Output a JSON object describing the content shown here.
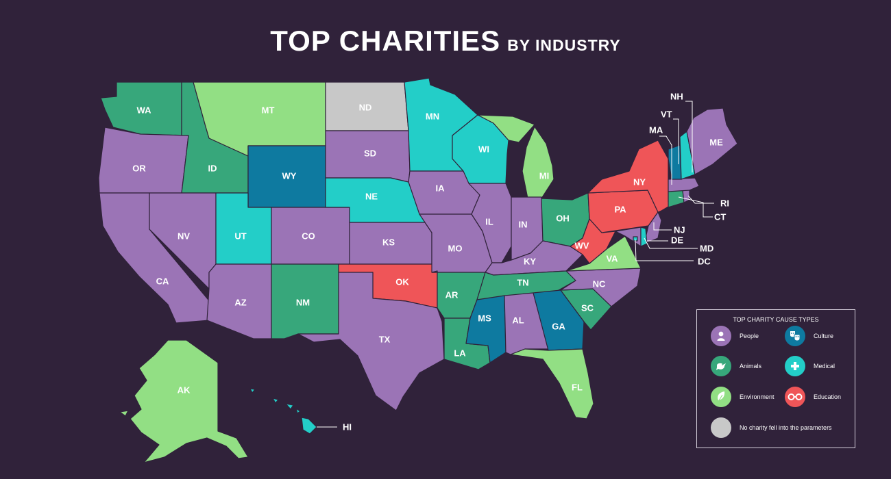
{
  "header": {
    "title": "TOP CHARITIES",
    "subtitle": "BY INDUSTRY"
  },
  "colors": {
    "background": "#30223a",
    "People": "#9b74b6",
    "Animals": "#37a77b",
    "Environment": "#92df84",
    "Culture": "#0e7aa0",
    "Medical": "#23cec8",
    "Education": "#ef5558",
    "None": "#c8c8c8"
  },
  "states": {
    "WA": {
      "label": "WA",
      "cause": "Animals"
    },
    "OR": {
      "label": "OR",
      "cause": "People"
    },
    "CA": {
      "label": "CA",
      "cause": "People"
    },
    "ID": {
      "label": "ID",
      "cause": "Animals"
    },
    "NV": {
      "label": "NV",
      "cause": "People"
    },
    "MT": {
      "label": "MT",
      "cause": "Environment"
    },
    "WY": {
      "label": "WY",
      "cause": "Culture"
    },
    "UT": {
      "label": "UT",
      "cause": "Medical"
    },
    "AZ": {
      "label": "AZ",
      "cause": "People"
    },
    "CO": {
      "label": "CO",
      "cause": "People"
    },
    "NM": {
      "label": "NM",
      "cause": "Animals"
    },
    "ND": {
      "label": "ND",
      "cause": "None"
    },
    "SD": {
      "label": "SD",
      "cause": "People"
    },
    "NE": {
      "label": "NE",
      "cause": "Medical"
    },
    "KS": {
      "label": "KS",
      "cause": "People"
    },
    "OK": {
      "label": "OK",
      "cause": "Education"
    },
    "TX": {
      "label": "TX",
      "cause": "People"
    },
    "MN": {
      "label": "MN",
      "cause": "Medical"
    },
    "IA": {
      "label": "IA",
      "cause": "People"
    },
    "MO": {
      "label": "MO",
      "cause": "People"
    },
    "AR": {
      "label": "AR",
      "cause": "Animals"
    },
    "LA": {
      "label": "LA",
      "cause": "Animals"
    },
    "WI": {
      "label": "WI",
      "cause": "Medical"
    },
    "IL": {
      "label": "IL",
      "cause": "People"
    },
    "MI": {
      "label": "MI",
      "cause": "Environment"
    },
    "IN": {
      "label": "IN",
      "cause": "People"
    },
    "OH": {
      "label": "OH",
      "cause": "Animals"
    },
    "KY": {
      "label": "KY",
      "cause": "People"
    },
    "TN": {
      "label": "TN",
      "cause": "Animals"
    },
    "MS": {
      "label": "MS",
      "cause": "Culture"
    },
    "AL": {
      "label": "AL",
      "cause": "People"
    },
    "GA": {
      "label": "GA",
      "cause": "Culture"
    },
    "FL": {
      "label": "FL",
      "cause": "Environment"
    },
    "SC": {
      "label": "SC",
      "cause": "Animals"
    },
    "NC": {
      "label": "NC",
      "cause": "People"
    },
    "VA": {
      "label": "VA",
      "cause": "Environment"
    },
    "WV": {
      "label": "WV",
      "cause": "Education"
    },
    "PA": {
      "label": "PA",
      "cause": "Education"
    },
    "NY": {
      "label": "NY",
      "cause": "Education"
    },
    "NJ": {
      "label": "NJ",
      "cause": "People"
    },
    "DE": {
      "label": "DE",
      "cause": "Medical"
    },
    "MD": {
      "label": "MD",
      "cause": "People"
    },
    "DC": {
      "label": "DC",
      "cause": "Medical"
    },
    "CT": {
      "label": "CT",
      "cause": "Animals"
    },
    "RI": {
      "label": "RI",
      "cause": "People"
    },
    "MA": {
      "label": "MA",
      "cause": "People"
    },
    "VT": {
      "label": "VT",
      "cause": "Culture"
    },
    "NH": {
      "label": "NH",
      "cause": "Medical"
    },
    "ME": {
      "label": "ME",
      "cause": "People"
    },
    "AK": {
      "label": "AK",
      "cause": "Environment"
    },
    "HI": {
      "label": "HI",
      "cause": "Medical"
    }
  },
  "legend": {
    "title": "TOP CHARITY CAUSE TYPES",
    "items": [
      {
        "label": "People",
        "cause": "People",
        "icon": "person-icon"
      },
      {
        "label": "Culture",
        "cause": "Culture",
        "icon": "theater-masks-icon"
      },
      {
        "label": "Animals",
        "cause": "Animals",
        "icon": "bird-icon"
      },
      {
        "label": "Medical",
        "cause": "Medical",
        "icon": "medical-cross-icon"
      },
      {
        "label": "Environment",
        "cause": "Environment",
        "icon": "leaf-icon"
      },
      {
        "label": "Education",
        "cause": "Education",
        "icon": "glasses-icon"
      },
      {
        "label": "No charity fell into the parameters",
        "cause": "None",
        "icon": "none-icon"
      }
    ]
  }
}
